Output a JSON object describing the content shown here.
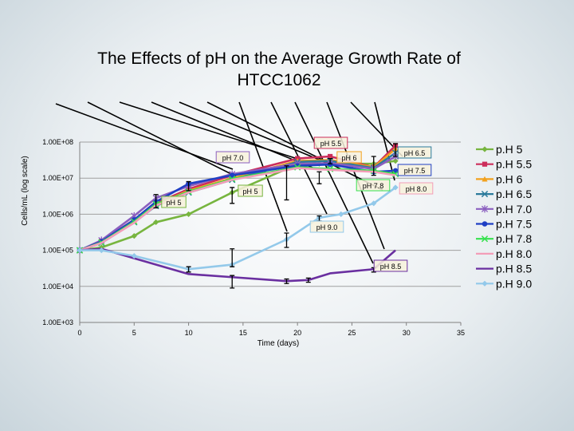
{
  "chart_data": {
    "type": "line",
    "title": "The Effects of pH on the Average Growth Rate of HTCC1062",
    "xlabel": "Time (days)",
    "ylabel": "Cells/mL (log scale)",
    "xlim": [
      0,
      35
    ],
    "ylim": [
      1000,
      100000000
    ],
    "y_scale": "log",
    "xticks": [
      0,
      5,
      10,
      15,
      20,
      25,
      30,
      35
    ],
    "yticks": [
      {
        "value": 1000,
        "label": "1.00E+03"
      },
      {
        "value": 10000,
        "label": "1.00E+04"
      },
      {
        "value": 100000,
        "label": "1.00E+05"
      },
      {
        "value": 1000000,
        "label": "1.00E+06"
      },
      {
        "value": 10000000,
        "label": "1.00E+07"
      },
      {
        "value": 100000000,
        "label": "1.00E+08"
      }
    ],
    "grid": "horizontal",
    "legend_position": "right",
    "series": [
      {
        "name": "p.H 5",
        "color": "#77b53f",
        "marker": "diamond",
        "x": [
          0,
          2,
          5,
          7,
          10,
          14,
          19,
          22,
          27,
          29
        ],
        "y": [
          100000,
          120000,
          250000,
          600000,
          1000000,
          4000000,
          18000000,
          25000000,
          25000000,
          30000000
        ]
      },
      {
        "name": "p.H 5.5",
        "color": "#cc2d5a",
        "marker": "square",
        "x": [
          0,
          2,
          5,
          7,
          10,
          14,
          20,
          23,
          27,
          29
        ],
        "y": [
          100000,
          180000,
          700000,
          2000000,
          5000000,
          12000000,
          35000000,
          40000000,
          20000000,
          80000000
        ]
      },
      {
        "name": "p.H 6",
        "color": "#f2a11d",
        "marker": "triangle",
        "x": [
          0,
          2,
          5,
          7,
          10,
          14,
          20,
          23,
          27,
          29
        ],
        "y": [
          100000,
          170000,
          650000,
          1800000,
          4500000,
          10000000,
          30000000,
          32000000,
          20000000,
          65000000
        ]
      },
      {
        "name": "p.H 6.5",
        "color": "#2b7a9b",
        "marker": "x",
        "x": [
          0,
          2,
          5,
          7,
          10,
          14,
          20,
          23,
          27,
          29
        ],
        "y": [
          100000,
          160000,
          600000,
          1700000,
          4000000,
          9000000,
          28000000,
          30000000,
          19000000,
          50000000
        ]
      },
      {
        "name": "p.H 7.0",
        "color": "#8b5fbf",
        "marker": "star",
        "x": [
          0,
          2,
          5,
          7,
          10,
          14,
          20,
          23,
          27,
          29
        ],
        "y": [
          100000,
          190000,
          900000,
          2800000,
          6000000,
          13000000,
          25000000,
          26000000,
          18000000,
          40000000
        ]
      },
      {
        "name": "p.H 7.5",
        "color": "#1f3fc4",
        "marker": "circle",
        "x": [
          0,
          2,
          5,
          7,
          10,
          14,
          20,
          23,
          27,
          29
        ],
        "y": [
          100000,
          175000,
          700000,
          2200000,
          7000000,
          12000000,
          22000000,
          24000000,
          15000000,
          16000000
        ]
      },
      {
        "name": "p.H 7.8",
        "color": "#36e14e",
        "marker": "x",
        "x": [
          0,
          2,
          5,
          7,
          10,
          14,
          20,
          23,
          27,
          29
        ],
        "y": [
          100000,
          165000,
          620000,
          1900000,
          4200000,
          9500000,
          20000000,
          18000000,
          16000000,
          13000000
        ]
      },
      {
        "name": "p.H 8.0",
        "color": "#f39db8",
        "marker": "none",
        "x": [
          0,
          2,
          5,
          7,
          10,
          14,
          20,
          23,
          27,
          29
        ],
        "y": [
          100000,
          160000,
          580000,
          1750000,
          4000000,
          9000000,
          19000000,
          17000000,
          15000000,
          12000000
        ]
      },
      {
        "name": "p.H 8.5",
        "color": "#6a2fa0",
        "marker": "none",
        "x": [
          0,
          2,
          5,
          10,
          14,
          19,
          21,
          23,
          27,
          29
        ],
        "y": [
          100000,
          110000,
          60000,
          22000,
          18000,
          14000,
          15000,
          23000,
          30000,
          100000
        ]
      },
      {
        "name": "p.H 9.0",
        "color": "#93c9ea",
        "marker": "diamond",
        "x": [
          0,
          2,
          5,
          10,
          14,
          19,
          22,
          24,
          27,
          29
        ],
        "y": [
          100000,
          100000,
          70000,
          30000,
          40000,
          200000,
          800000,
          1000000,
          2000000,
          5500000
        ]
      }
    ],
    "annotations": [
      {
        "text": "pH 5.5",
        "series": "p.H 5.5"
      },
      {
        "text": "pH 7.0",
        "series": "p.H 7.0"
      },
      {
        "text": "pH 6",
        "series": "p.H 6"
      },
      {
        "text": "pH 6.5",
        "series": "p.H 6.5"
      },
      {
        "text": "pH 7.5",
        "series": "p.H 7.5"
      },
      {
        "text": "pH 7.8",
        "series": "p.H 7.8"
      },
      {
        "text": "pH 8.0",
        "series": "p.H 8.0"
      },
      {
        "text": "pH 5",
        "series": "p.H 5"
      },
      {
        "text": "pH 5",
        "series": "p.H 5"
      },
      {
        "text": "pH 9.0",
        "series": "p.H 9.0"
      },
      {
        "text": "pH 8.5",
        "series": "p.H 8.5"
      }
    ]
  }
}
